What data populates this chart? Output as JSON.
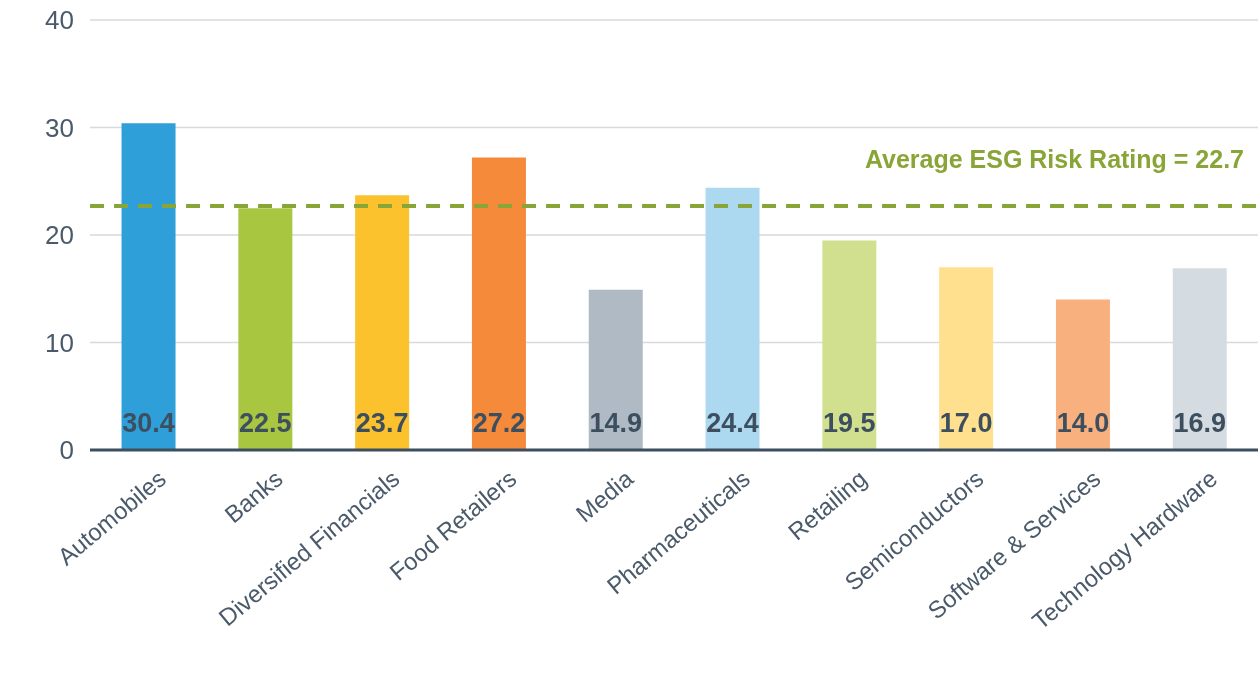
{
  "chart_data": {
    "type": "bar",
    "categories": [
      "Automobiles",
      "Banks",
      "Diversified Financials",
      "Food Retailers",
      "Media",
      "Pharmaceuticals",
      "Retailing",
      "Semiconductors",
      "Software & Services",
      "Technology Hardware"
    ],
    "values": [
      30.4,
      22.5,
      23.7,
      27.2,
      14.9,
      24.4,
      19.5,
      17.0,
      14.0,
      16.9
    ],
    "colors": [
      "#2e9fd9",
      "#a9c640",
      "#fcc22d",
      "#f58b3a",
      "#afbac4",
      "#acd8f0",
      "#d0e08f",
      "#fee08f",
      "#f8b07f",
      "#d5dce1"
    ],
    "value_labels": [
      "30.4",
      "22.5",
      "23.7",
      "27.2",
      "14.9",
      "24.4",
      "19.5",
      "17.0",
      "14.0",
      "16.9"
    ],
    "ylim": [
      0,
      40
    ],
    "yticks": [
      0,
      10,
      20,
      30,
      40
    ],
    "grid": "y",
    "ref_lines": [
      {
        "axis": "y",
        "value": 22.7,
        "label": "Average ESG Risk Rating = 22.7",
        "color": "#8aa537",
        "line_style": "dashed"
      }
    ]
  }
}
